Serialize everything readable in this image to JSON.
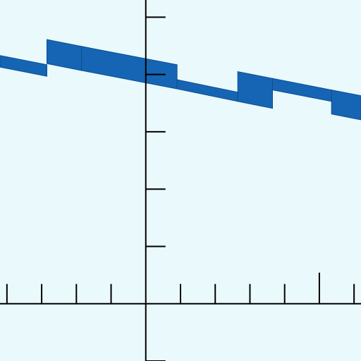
{
  "colors": {
    "background": "#eaf9fc",
    "axis": "#000000",
    "band": "#1565b4",
    "band_edge": "#0d4f92"
  },
  "chart_data": {
    "type": "area",
    "title": "",
    "xlabel": "",
    "ylabel": "",
    "grid": false,
    "legend": "none",
    "xlim": [
      -4.2,
      6.2
    ],
    "ylim": [
      -1.0,
      5.3
    ],
    "x_ticks": [
      -4,
      -3,
      -2,
      -1,
      1,
      2,
      3,
      4,
      5,
      6
    ],
    "y_ticks": [
      1,
      2,
      3,
      4,
      5,
      -1
    ],
    "series": [
      {
        "segments": [
          {
            "x": [
              -4.2,
              -2.85
            ],
            "upper": [
              4.33,
              4.17
            ],
            "lower": [
              4.13,
              3.97
            ]
          },
          {
            "x": [
              -2.85,
              -1.85
            ],
            "upper": [
              4.61,
              4.49
            ],
            "lower": [
              4.19,
              4.07
            ]
          },
          {
            "x": [
              -1.85,
              0.9
            ],
            "upper": [
              4.49,
              4.17
            ],
            "lower": [
              4.07,
              3.75
            ]
          },
          {
            "x": [
              0.9,
              2.65
            ],
            "upper": [
              3.91,
              3.69
            ],
            "lower": [
              3.75,
              3.53
            ]
          },
          {
            "x": [
              2.65,
              3.65
            ],
            "upper": [
              4.05,
              3.93
            ],
            "lower": [
              3.53,
              3.41
            ]
          },
          {
            "x": [
              3.65,
              5.35
            ],
            "upper": [
              3.93,
              3.73
            ],
            "lower": [
              3.73,
              3.53
            ]
          },
          {
            "x": [
              5.35,
              6.2
            ],
            "upper": [
              3.73,
              3.63
            ],
            "lower": [
              3.31,
              3.21
            ]
          }
        ]
      }
    ]
  }
}
